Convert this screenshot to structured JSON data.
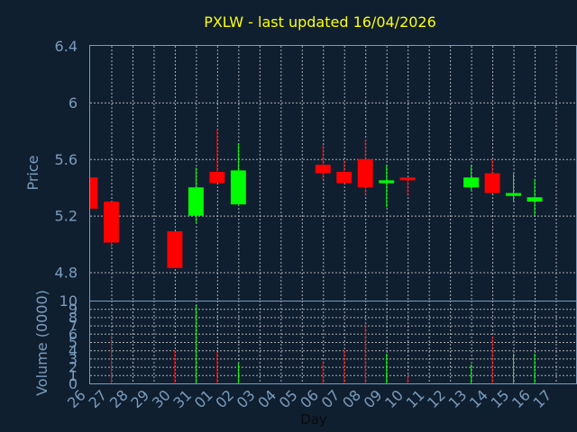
{
  "chart_data": {
    "type": "candlestick",
    "title": "PXLW - last updated 16/04/2026",
    "xlabel": "Day",
    "colors": {
      "up": "#00ff00",
      "down": "#ff0000",
      "background": "#0f1f30",
      "axis": "#7a9cbc",
      "title": "#ffff00",
      "grid": "#c8c8c8"
    },
    "x_ticks": [
      "26",
      "27",
      "28",
      "29",
      "30",
      "31",
      "01",
      "02",
      "03",
      "04",
      "05",
      "06",
      "07",
      "08",
      "09",
      "10",
      "11",
      "12",
      "13",
      "14",
      "15",
      "16",
      "17"
    ],
    "price_panel": {
      "ylabel": "Price",
      "ylim": [
        4.6,
        6.4
      ],
      "y_ticks": [
        "4.8",
        "5.2",
        "5.6",
        "6",
        "6.4"
      ],
      "y_tick_values": [
        4.8,
        5.2,
        5.6,
        6.0,
        6.4
      ],
      "candles": [
        {
          "day": "26",
          "open": 5.47,
          "close": 5.25,
          "high": 5.47,
          "low": 5.25
        },
        {
          "day": "27",
          "open": 5.3,
          "close": 5.01,
          "high": 5.3,
          "low": 4.97
        },
        {
          "day": "30",
          "open": 5.09,
          "close": 4.83,
          "high": 5.09,
          "low": 4.83
        },
        {
          "day": "31",
          "open": 5.2,
          "close": 5.4,
          "high": 5.54,
          "low": 5.15
        },
        {
          "day": "01",
          "open": 5.51,
          "close": 5.43,
          "high": 5.81,
          "low": 5.43
        },
        {
          "day": "02",
          "open": 5.28,
          "close": 5.52,
          "high": 5.71,
          "low": 5.28
        },
        {
          "day": "06",
          "open": 5.56,
          "close": 5.5,
          "high": 5.7,
          "low": 5.46
        },
        {
          "day": "07",
          "open": 5.51,
          "close": 5.43,
          "high": 5.59,
          "low": 5.43
        },
        {
          "day": "08",
          "open": 5.6,
          "close": 5.4,
          "high": 5.74,
          "low": 5.34
        },
        {
          "day": "09",
          "open": 5.43,
          "close": 5.45,
          "high": 5.56,
          "low": 5.26
        },
        {
          "day": "10",
          "open": 5.47,
          "close": 5.45,
          "high": 5.47,
          "low": 5.34
        },
        {
          "day": "13",
          "open": 5.4,
          "close": 5.47,
          "high": 5.56,
          "low": 5.38
        },
        {
          "day": "14",
          "open": 5.5,
          "close": 5.36,
          "high": 5.6,
          "low": 5.36
        },
        {
          "day": "15",
          "open": 5.34,
          "close": 5.36,
          "high": 5.5,
          "low": 5.3
        },
        {
          "day": "16",
          "open": 5.3,
          "close": 5.33,
          "high": 5.46,
          "low": 5.2
        }
      ]
    },
    "volume_panel": {
      "ylabel": "Volume (0000)",
      "ylim": [
        0,
        10
      ],
      "y_ticks": [
        "0",
        "1",
        "2",
        "3",
        "4",
        "5",
        "6",
        "7",
        "8",
        "9",
        "10"
      ],
      "bars": [
        {
          "day": "27",
          "value": 5.8,
          "direction": "down"
        },
        {
          "day": "30",
          "value": 4.0,
          "direction": "down"
        },
        {
          "day": "31",
          "value": 9.5,
          "direction": "up"
        },
        {
          "day": "01",
          "value": 3.8,
          "direction": "down"
        },
        {
          "day": "02",
          "value": 2.5,
          "direction": "up"
        },
        {
          "day": "06",
          "value": 2.7,
          "direction": "down"
        },
        {
          "day": "07",
          "value": 4.1,
          "direction": "down"
        },
        {
          "day": "08",
          "value": 7.2,
          "direction": "down"
        },
        {
          "day": "09",
          "value": 3.6,
          "direction": "up"
        },
        {
          "day": "10",
          "value": 1.0,
          "direction": "down"
        },
        {
          "day": "13",
          "value": 2.3,
          "direction": "up"
        },
        {
          "day": "14",
          "value": 5.7,
          "direction": "down"
        },
        {
          "day": "15",
          "value": 3.6,
          "direction": "up"
        },
        {
          "day": "16",
          "value": 3.6,
          "direction": "up"
        }
      ]
    }
  }
}
